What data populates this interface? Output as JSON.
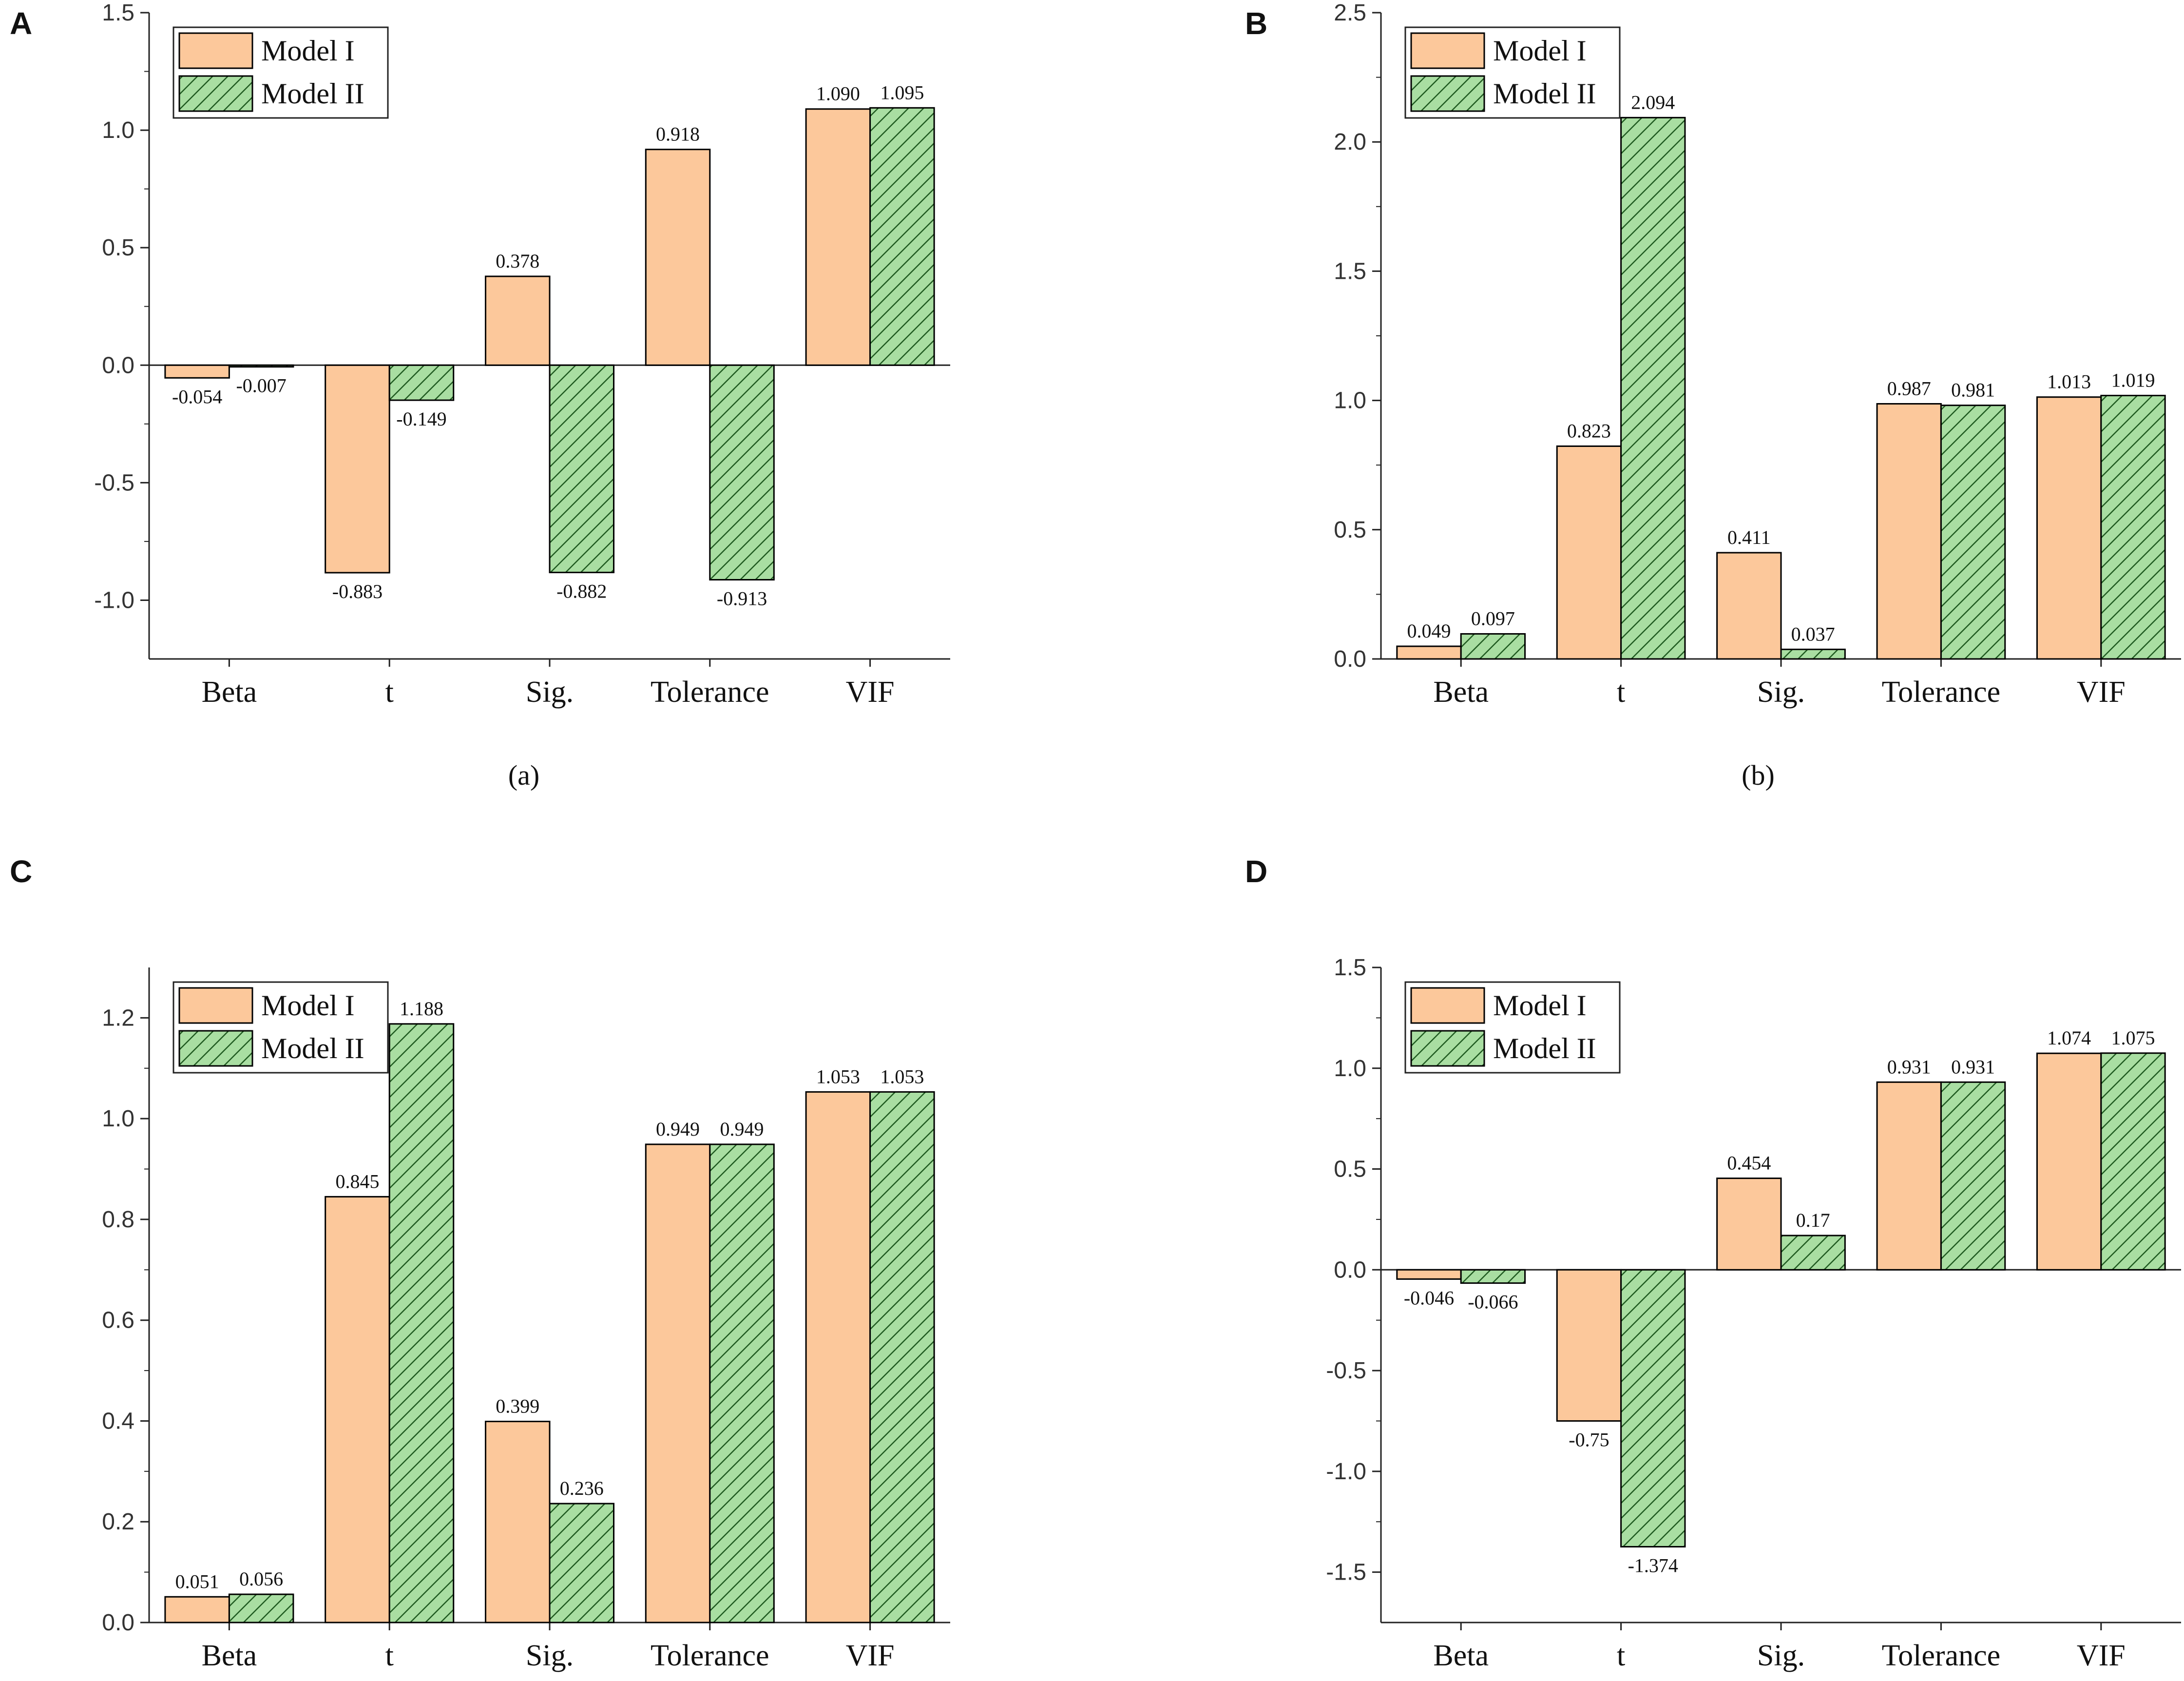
{
  "colors": {
    "model1_fill": "#fcc89b",
    "model2_fill": "#a9dea2",
    "model2_hatch": "#1f5a20",
    "stroke": "#000000"
  },
  "chart_data": [
    {
      "panel": "A",
      "caption": "(a)",
      "type": "bar",
      "categories": [
        "Beta",
        "t",
        "Sig.",
        "Tolerance",
        "VIF"
      ],
      "series": [
        {
          "name": "Model I",
          "values": [
            -0.054,
            -0.883,
            0.378,
            0.918,
            1.09
          ],
          "labels": [
            "-0.054",
            "-0.883",
            "0.378",
            "0.918",
            "1.090"
          ]
        },
        {
          "name": "Model II",
          "values": [
            -0.007,
            -0.149,
            -0.882,
            -0.913,
            1.095
          ],
          "labels": [
            "-0.007",
            "-0.149",
            "-0.882",
            "-0.913",
            "1.095"
          ]
        }
      ],
      "ylim": [
        -1.25,
        1.5
      ],
      "yticks": [
        -1.0,
        -0.5,
        0.0,
        0.5,
        1.0,
        1.5
      ],
      "ytick_labels": [
        "-1.0",
        "-0.5",
        "0.0",
        "0.5",
        "1.0",
        "1.5"
      ],
      "legend": "top-left"
    },
    {
      "panel": "B",
      "caption": "(b)",
      "type": "bar",
      "categories": [
        "Beta",
        "t",
        "Sig.",
        "Tolerance",
        "VIF"
      ],
      "series": [
        {
          "name": "Model I",
          "values": [
            0.049,
            0.823,
            0.411,
            0.987,
            1.013
          ],
          "labels": [
            "0.049",
            "0.823",
            "0.411",
            "0.987",
            "1.013"
          ]
        },
        {
          "name": "Model II",
          "values": [
            0.097,
            2.094,
            0.037,
            0.981,
            1.019
          ],
          "labels": [
            "0.097",
            "2.094",
            "0.037",
            "0.981",
            "1.019"
          ]
        }
      ],
      "ylim": [
        0,
        2.5
      ],
      "yticks": [
        0.0,
        0.5,
        1.0,
        1.5,
        2.0,
        2.5
      ],
      "ytick_labels": [
        "0.0",
        "0.5",
        "1.0",
        "1.5",
        "2.0",
        "2.5"
      ],
      "legend": "top-left"
    },
    {
      "panel": "C",
      "caption": "",
      "type": "bar",
      "categories": [
        "Beta",
        "t",
        "Sig.",
        "Tolerance",
        "VIF"
      ],
      "series": [
        {
          "name": "Model I",
          "values": [
            0.051,
            0.845,
            0.399,
            0.949,
            1.053
          ],
          "labels": [
            "0.051",
            "0.845",
            "0.399",
            "0.949",
            "1.053"
          ]
        },
        {
          "name": "Model II",
          "values": [
            0.056,
            1.188,
            0.236,
            0.949,
            1.053
          ],
          "labels": [
            "0.056",
            "1.188",
            "0.236",
            "0.949",
            "1.053"
          ]
        }
      ],
      "ylim": [
        0,
        1.3
      ],
      "yticks": [
        0.0,
        0.2,
        0.4,
        0.6,
        0.8,
        1.0,
        1.2
      ],
      "ytick_labels": [
        "0.0",
        "0.2",
        "0.4",
        "0.6",
        "0.8",
        "1.0",
        "1.2"
      ],
      "legend": "top-left"
    },
    {
      "panel": "D",
      "caption": "",
      "type": "bar",
      "categories": [
        "Beta",
        "t",
        "Sig.",
        "Tolerance",
        "VIF"
      ],
      "series": [
        {
          "name": "Model I",
          "values": [
            -0.046,
            -0.75,
            0.454,
            0.931,
            1.074
          ],
          "labels": [
            "-0.046",
            "-0.75",
            "0.454",
            "0.931",
            "1.074"
          ]
        },
        {
          "name": "Model II",
          "values": [
            -0.066,
            -1.374,
            0.17,
            0.931,
            1.075
          ],
          "labels": [
            "-0.066",
            "-1.374",
            "0.17",
            "0.931",
            "1.075"
          ]
        }
      ],
      "ylim": [
        -1.75,
        1.5
      ],
      "yticks": [
        -1.5,
        -1.0,
        -0.5,
        0.0,
        0.5,
        1.0,
        1.5
      ],
      "ytick_labels": [
        "-1.5",
        "-1.0",
        "-0.5",
        "0.0",
        "0.5",
        "1.0",
        "1.5"
      ],
      "legend": "top-left"
    }
  ]
}
